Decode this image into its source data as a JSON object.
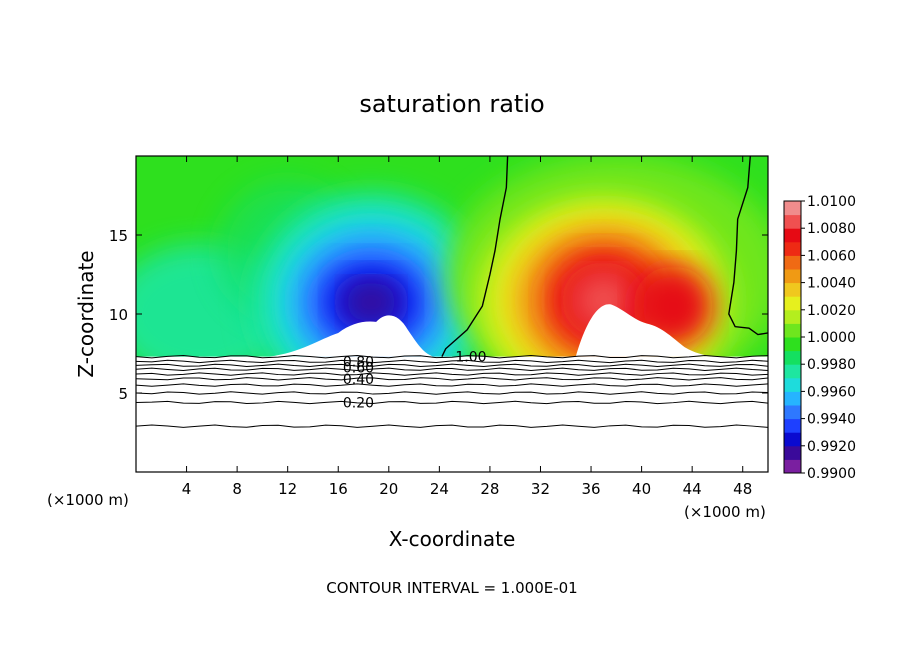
{
  "chart_data": {
    "type": "heatmap",
    "title": "saturation ratio",
    "xlabel": "X-coordinate",
    "ylabel": "Z-coordinate",
    "x_unit_left": "(×1000 m)",
    "x_unit_right": "(×1000 m)",
    "footer": "CONTOUR INTERVAL = 1.000E-01",
    "xlim": [
      0,
      50
    ],
    "ylim": [
      0,
      20
    ],
    "x_ticks": [
      4,
      8,
      12,
      16,
      20,
      24,
      28,
      32,
      36,
      40,
      44,
      48
    ],
    "y_ticks": [
      5,
      10,
      15
    ],
    "x_tick_labels": [
      "4",
      "8",
      "12",
      "16",
      "20",
      "24",
      "28",
      "32",
      "36",
      "40",
      "44",
      "48"
    ],
    "y_tick_labels": [
      "5",
      "10",
      "15"
    ],
    "colorbar": {
      "levels": [
        0.99,
        0.991,
        0.992,
        0.993,
        0.994,
        0.995,
        0.996,
        0.997,
        0.998,
        0.999,
        1.0,
        1.001,
        1.002,
        1.003,
        1.004,
        1.005,
        1.006,
        1.007,
        1.008,
        1.009,
        1.01
      ],
      "labels": [
        "1.0100",
        "1.0080",
        "1.0060",
        "1.0040",
        "1.0020",
        "1.0000",
        "0.9980",
        "0.9960",
        "0.9940",
        "0.9920",
        "0.9900"
      ],
      "colors": [
        "#7a1fa0",
        "#3a0a9a",
        "#0a0ad0",
        "#1e40ff",
        "#2e78ff",
        "#26b4ff",
        "#1edcdc",
        "#1ee6a0",
        "#14e060",
        "#2ee01e",
        "#6ee61e",
        "#b4ee1e",
        "#e6f01e",
        "#f0c81e",
        "#f09a14",
        "#f06a14",
        "#ee2a14",
        "#e60a14",
        "#f05050",
        "#f08c8c"
      ]
    },
    "contour_labels": [
      {
        "text": "1.00",
        "x": 26.5,
        "y": 7.3
      },
      {
        "text": "0.80",
        "x": 17.6,
        "y": 7.0
      },
      {
        "text": "0.60",
        "x": 17.6,
        "y": 6.6
      },
      {
        "text": "0.40",
        "x": 17.6,
        "y": 5.9
      },
      {
        "text": "0.20",
        "x": 17.6,
        "y": 4.4
      }
    ],
    "contour_levels_below": [
      1.0,
      0.9,
      0.8,
      0.7,
      0.6,
      0.5,
      0.4,
      0.3,
      0.2,
      0.1
    ],
    "contour_heights": [
      7.3,
      7.0,
      6.75,
      6.5,
      6.2,
      5.9,
      5.5,
      5.0,
      4.4,
      2.9
    ],
    "cloud_base": 7.3,
    "minimum_blob": {
      "x": 19,
      "y": 10.5
    },
    "maximum_blob": {
      "x": 37,
      "y": 11.5
    },
    "sat_boundary_left": [
      [
        29.4,
        20
      ],
      [
        29.3,
        18
      ],
      [
        28.8,
        16
      ],
      [
        28.4,
        14
      ],
      [
        28.0,
        12.5
      ],
      [
        27.4,
        10.5
      ],
      [
        26.2,
        9.0
      ],
      [
        24.5,
        7.8
      ],
      [
        24.2,
        7.3
      ]
    ],
    "sat_boundary_right": [
      [
        48.6,
        20
      ],
      [
        48.4,
        18
      ],
      [
        47.6,
        16
      ],
      [
        47.5,
        14
      ],
      [
        47.3,
        12
      ],
      [
        46.9,
        10
      ],
      [
        47.4,
        9.2
      ],
      [
        48.5,
        9.1
      ],
      [
        49.2,
        8.7
      ],
      [
        50,
        8.8
      ]
    ]
  }
}
